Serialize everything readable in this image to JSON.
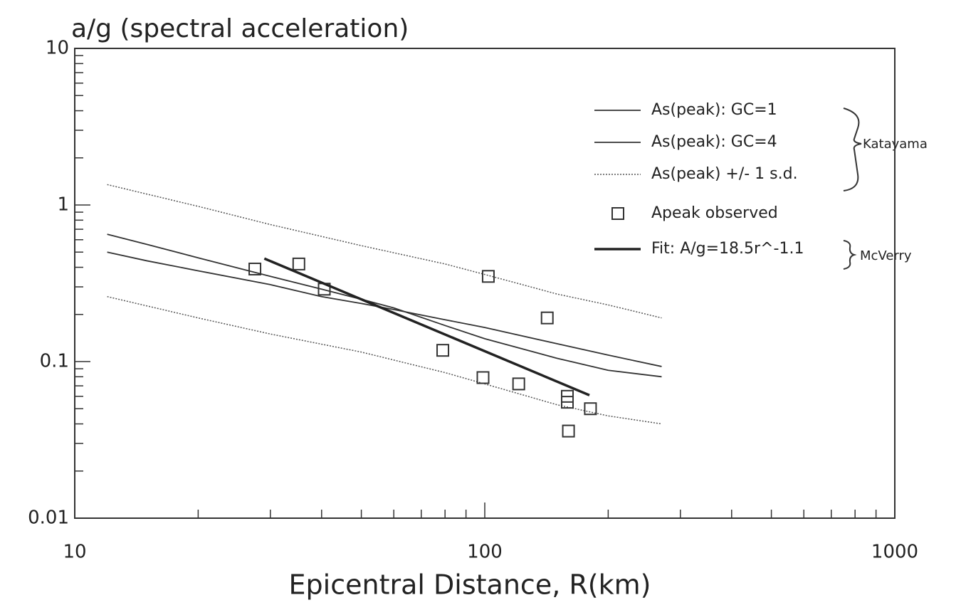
{
  "chart_data": {
    "type": "line",
    "title": "a/g (spectral acceleration)",
    "x_label": "Epicentral Distance, R(km)",
    "log_x": true,
    "log_y": true,
    "xlim": [
      10,
      1000
    ],
    "xticks": [
      10,
      100,
      1000
    ],
    "ylim": [
      0.01,
      10
    ],
    "yticks": [
      0.01,
      0.1,
      1,
      10
    ],
    "series": [
      {
        "name": "As(peak): GC=1",
        "color": "#333333",
        "dash": "solid",
        "mode": "line",
        "x": [
          12,
          15,
          20,
          30,
          40,
          50,
          60,
          80,
          100,
          150,
          200,
          270
        ],
        "values": [
          0.5,
          0.44,
          0.38,
          0.31,
          0.26,
          0.235,
          0.215,
          0.185,
          0.165,
          0.13,
          0.11,
          0.093
        ]
      },
      {
        "name": "As(peak): GC=4",
        "color": "#333333",
        "dash": "solid",
        "mode": "line",
        "x": [
          12,
          15,
          20,
          30,
          40,
          50,
          60,
          80,
          100,
          150,
          200,
          270
        ],
        "values": [
          0.65,
          0.56,
          0.46,
          0.35,
          0.29,
          0.25,
          0.22,
          0.17,
          0.14,
          0.105,
          0.088,
          0.08
        ]
      },
      {
        "name": "As(peak) +/- 1 s.d.",
        "color": "#555555",
        "dash": "dotted",
        "mode": "line",
        "x": [
          12,
          20,
          30,
          50,
          80,
          100,
          150,
          200,
          270
        ],
        "values": [
          1.35,
          0.98,
          0.75,
          0.55,
          0.42,
          0.36,
          0.27,
          0.23,
          0.19
        ]
      },
      {
        "name": null,
        "color": "#555555",
        "dash": "dotted",
        "mode": "line",
        "x": [
          12,
          20,
          30,
          50,
          80,
          100,
          150,
          200,
          270
        ],
        "values": [
          0.26,
          0.19,
          0.15,
          0.115,
          0.085,
          0.072,
          0.053,
          0.045,
          0.04
        ]
      },
      {
        "name": "Apeak observed",
        "color": "#333333",
        "mode": "markers",
        "x": [
          27.5,
          35.2,
          40.6,
          102,
          142,
          79,
          99,
          121,
          159,
          159,
          181,
          160
        ],
        "values": [
          0.39,
          0.42,
          0.29,
          0.35,
          0.19,
          0.118,
          0.079,
          0.072,
          0.06,
          0.055,
          0.05,
          0.036
        ]
      },
      {
        "name": "Fit: A/g=18.5r^-1.1",
        "color": "#222222",
        "dash": "solid",
        "mode": "thick",
        "x": [
          29,
          180
        ],
        "values": [
          0.455,
          0.061
        ]
      }
    ],
    "annotations": [
      "Katayama",
      "McVerry"
    ]
  }
}
